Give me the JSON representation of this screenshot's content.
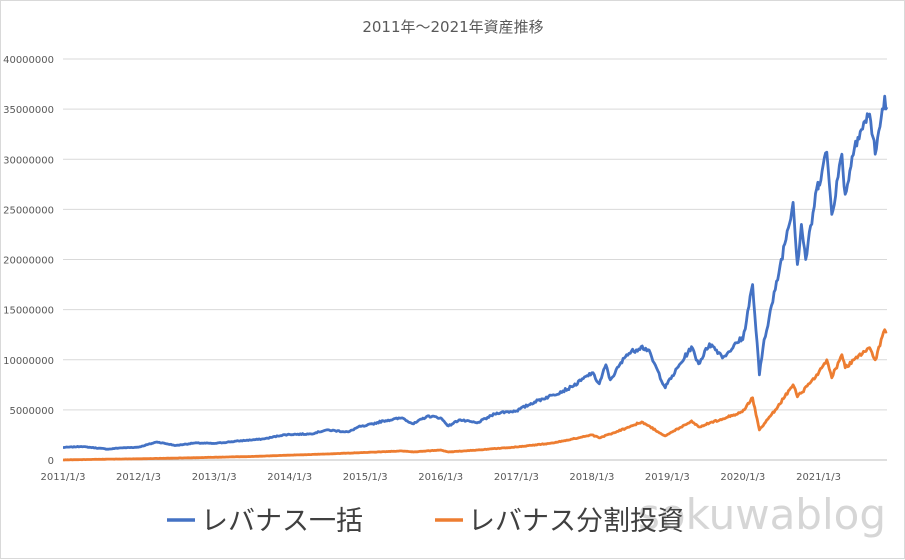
{
  "chart_data": {
    "type": "line",
    "title": "2011年～2021年資産推移",
    "xlabel": "",
    "ylabel": "",
    "ylim": [
      0,
      40000000
    ],
    "y_ticks": [
      "0",
      "5000000",
      "10000000",
      "15000000",
      "20000000",
      "25000000",
      "30000000",
      "35000000",
      "40000000"
    ],
    "x_ticks": [
      "2011/1/3",
      "2012/1/3",
      "2013/1/3",
      "2014/1/3",
      "2015/1/3",
      "2016/1/3",
      "2017/1/3",
      "2018/1/3",
      "2019/1/3",
      "2020/1/3",
      "2021/1/3"
    ],
    "x_range": [
      "2011/1/3",
      "2021/11/30"
    ],
    "grid": "horizontal",
    "legend_position": "bottom",
    "series": [
      {
        "name": "レバナス一括",
        "color": "#4472c4",
        "points": [
          [
            "2011/1/3",
            1250000
          ],
          [
            "2011/4/1",
            1350000
          ],
          [
            "2011/8/10",
            1080000
          ],
          [
            "2011/10/1",
            1200000
          ],
          [
            "2012/1/3",
            1280000
          ],
          [
            "2012/4/1",
            1800000
          ],
          [
            "2012/7/1",
            1450000
          ],
          [
            "2012/10/1",
            1700000
          ],
          [
            "2013/1/3",
            1650000
          ],
          [
            "2013/5/1",
            1900000
          ],
          [
            "2013/9/1",
            2100000
          ],
          [
            "2013/12/1",
            2500000
          ],
          [
            "2014/1/3",
            2550000
          ],
          [
            "2014/4/15",
            2600000
          ],
          [
            "2014/7/1",
            3000000
          ],
          [
            "2014/10/15",
            2800000
          ],
          [
            "2014/12/1",
            3300000
          ],
          [
            "2015/1/3",
            3400000
          ],
          [
            "2015/4/1",
            3900000
          ],
          [
            "2015/7/1",
            4200000
          ],
          [
            "2015/8/25",
            3600000
          ],
          [
            "2015/11/1",
            4400000
          ],
          [
            "2016/1/3",
            4200000
          ],
          [
            "2016/2/10",
            3400000
          ],
          [
            "2016/4/1",
            4000000
          ],
          [
            "2016/6/27",
            3700000
          ],
          [
            "2016/10/1",
            4700000
          ],
          [
            "2017/1/3",
            4900000
          ],
          [
            "2017/4/1",
            5800000
          ],
          [
            "2017/7/1",
            6500000
          ],
          [
            "2017/10/1",
            7300000
          ],
          [
            "2018/1/3",
            8700000
          ],
          [
            "2018/2/8",
            7600000
          ],
          [
            "2018/3/12",
            9500000
          ],
          [
            "2018/4/2",
            8000000
          ],
          [
            "2018/6/20",
            10500000
          ],
          [
            "2018/8/29",
            11300000
          ],
          [
            "2018/10/1",
            11000000
          ],
          [
            "2018/12/24",
            7200000
          ],
          [
            "2019/1/3",
            7600000
          ],
          [
            "2019/4/30",
            11300000
          ],
          [
            "2019/6/3",
            9600000
          ],
          [
            "2019/7/26",
            11600000
          ],
          [
            "2019/10/2",
            10300000
          ],
          [
            "2019/12/31",
            12200000
          ],
          [
            "2020/1/3",
            12000000
          ],
          [
            "2020/2/19",
            17500000
          ],
          [
            "2020/3/23",
            8500000
          ],
          [
            "2020/4/15",
            12000000
          ],
          [
            "2020/6/8",
            17000000
          ],
          [
            "2020/9/2",
            25700000
          ],
          [
            "2020/9/23",
            19500000
          ],
          [
            "2020/10/12",
            23500000
          ],
          [
            "2020/11/2",
            20000000
          ],
          [
            "2020/12/31",
            27700000
          ],
          [
            "2021/1/3",
            27500000
          ],
          [
            "2021/2/12",
            30700000
          ],
          [
            "2021/3/8",
            24500000
          ],
          [
            "2021/4/26",
            30500000
          ],
          [
            "2021/5/12",
            26500000
          ],
          [
            "2021/7/1",
            31800000
          ],
          [
            "2021/9/7",
            34500000
          ],
          [
            "2021/10/4",
            30500000
          ],
          [
            "2021/11/19",
            36300000
          ],
          [
            "2021/11/30",
            35200000
          ]
        ]
      },
      {
        "name": "レバナス分割投資",
        "color": "#ed7d31",
        "points": [
          [
            "2011/1/3",
            10000
          ],
          [
            "2011/6/1",
            60000
          ],
          [
            "2012/1/3",
            120000
          ],
          [
            "2012/7/1",
            190000
          ],
          [
            "2013/1/3",
            270000
          ],
          [
            "2013/7/1",
            350000
          ],
          [
            "2014/1/3",
            480000
          ],
          [
            "2014/7/1",
            600000
          ],
          [
            "2015/1/3",
            750000
          ],
          [
            "2015/7/1",
            900000
          ],
          [
            "2015/8/25",
            800000
          ],
          [
            "2016/1/3",
            1000000
          ],
          [
            "2016/2/10",
            800000
          ],
          [
            "2016/7/1",
            1000000
          ],
          [
            "2017/1/3",
            1300000
          ],
          [
            "2017/7/1",
            1700000
          ],
          [
            "2018/1/3",
            2500000
          ],
          [
            "2018/2/8",
            2200000
          ],
          [
            "2018/6/20",
            3200000
          ],
          [
            "2018/9/1",
            3800000
          ],
          [
            "2018/12/24",
            2400000
          ],
          [
            "2019/4/30",
            3900000
          ],
          [
            "2019/6/3",
            3300000
          ],
          [
            "2019/12/31",
            4800000
          ],
          [
            "2020/2/19",
            6200000
          ],
          [
            "2020/3/23",
            3000000
          ],
          [
            "2020/6/8",
            5000000
          ],
          [
            "2020/9/2",
            7500000
          ],
          [
            "2020/9/23",
            6300000
          ],
          [
            "2020/12/31",
            8500000
          ],
          [
            "2021/2/12",
            10000000
          ],
          [
            "2021/3/8",
            8200000
          ],
          [
            "2021/4/26",
            10500000
          ],
          [
            "2021/5/12",
            9200000
          ],
          [
            "2021/9/7",
            11200000
          ],
          [
            "2021/10/4",
            10000000
          ],
          [
            "2021/11/19",
            13000000
          ],
          [
            "2021/11/30",
            12800000
          ]
        ]
      }
    ]
  },
  "watermark": "sokuwablog"
}
